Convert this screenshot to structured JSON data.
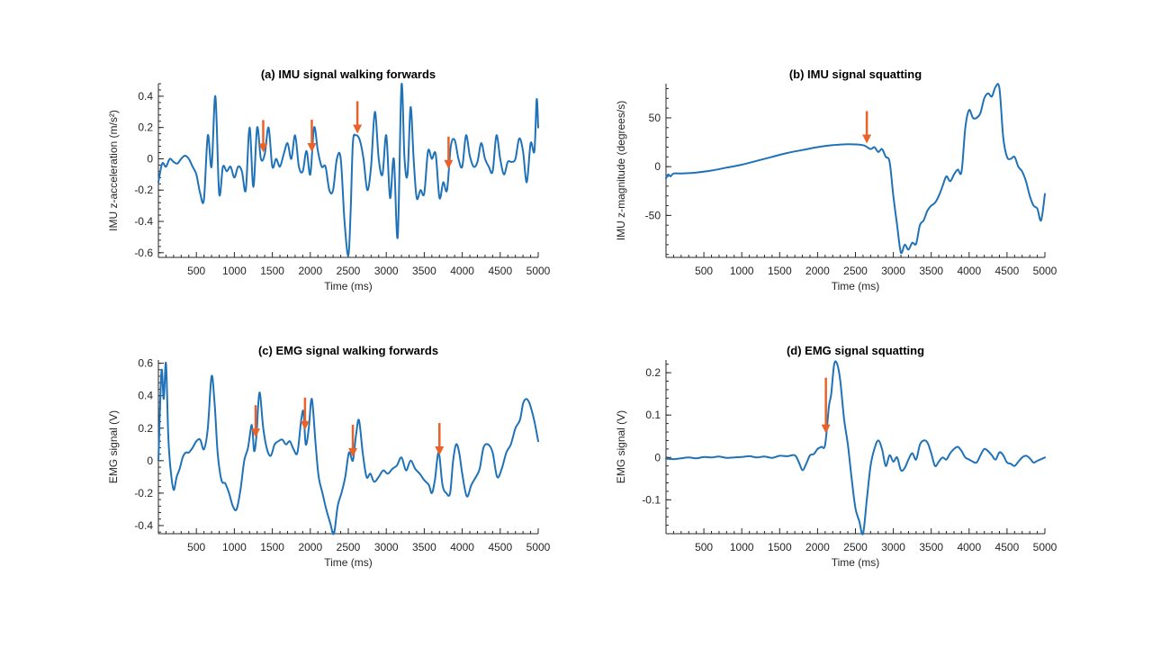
{
  "colors": {
    "series": "#1F72B8",
    "arrow": "#E8622A",
    "axis": "#262626"
  },
  "chart_data": [
    {
      "id": "a",
      "type": "line",
      "title": "(a) IMU signal walking forwards",
      "xlabel": "Time (ms)",
      "ylabel": "IMU z-acceleration (m/s²)",
      "xlim": [
        0,
        5000
      ],
      "ylim": [
        -0.63,
        0.48
      ],
      "xticks": [
        500,
        1000,
        1500,
        2000,
        2500,
        3000,
        3500,
        4000,
        4500,
        5000
      ],
      "yticks": [
        -0.6,
        -0.4,
        -0.2,
        0,
        0.2,
        0.4
      ],
      "ytick_labels": [
        "-0.6",
        "-0.4",
        "-0.2",
        "0",
        "0.2",
        "0.4"
      ],
      "series": [
        {
          "name": "IMU z-acceleration",
          "x": [
            0,
            50,
            100,
            150,
            200,
            250,
            300,
            350,
            400,
            450,
            500,
            550,
            600,
            650,
            700,
            750,
            800,
            850,
            900,
            950,
            1000,
            1050,
            1100,
            1150,
            1200,
            1250,
            1300,
            1350,
            1400,
            1450,
            1500,
            1550,
            1600,
            1650,
            1700,
            1750,
            1800,
            1850,
            1900,
            1950,
            2000,
            2050,
            2100,
            2150,
            2200,
            2250,
            2300,
            2350,
            2400,
            2450,
            2500,
            2530,
            2560,
            2600,
            2650,
            2700,
            2750,
            2800,
            2850,
            2900,
            2950,
            3000,
            3050,
            3100,
            3150,
            3200,
            3240,
            3280,
            3320,
            3360,
            3400,
            3450,
            3500,
            3550,
            3600,
            3650,
            3700,
            3750,
            3800,
            3850,
            3900,
            3950,
            4000,
            4050,
            4100,
            4150,
            4200,
            4250,
            4300,
            4350,
            4400,
            4450,
            4500,
            4550,
            4600,
            4650,
            4700,
            4750,
            4800,
            4850,
            4900,
            4950,
            4980,
            5000
          ],
          "y": [
            -0.15,
            -0.03,
            -0.05,
            0.0,
            -0.02,
            -0.03,
            0.0,
            0.02,
            0.0,
            -0.05,
            -0.1,
            -0.22,
            -0.26,
            0.15,
            -0.05,
            0.4,
            -0.22,
            -0.05,
            -0.08,
            -0.05,
            -0.12,
            -0.05,
            -0.08,
            -0.2,
            0.2,
            -0.18,
            0.2,
            0.0,
            0.03,
            0.2,
            -0.05,
            0.0,
            -0.05,
            0.03,
            0.1,
            0.0,
            0.15,
            -0.05,
            -0.08,
            0.05,
            -0.1,
            0.2,
            0.05,
            -0.05,
            -0.05,
            -0.2,
            -0.2,
            0.0,
            0.0,
            -0.4,
            -0.62,
            -0.35,
            0.1,
            0.15,
            0.12,
            0.0,
            -0.2,
            -0.05,
            0.3,
            0.0,
            -0.1,
            0.15,
            -0.25,
            0.0,
            -0.5,
            0.47,
            0.0,
            -0.1,
            0.33,
            0.0,
            -0.25,
            -0.2,
            -0.22,
            0.05,
            0.0,
            0.03,
            -0.25,
            -0.15,
            -0.2,
            0.08,
            0.12,
            0.0,
            -0.05,
            0.15,
            0.02,
            -0.05,
            -0.02,
            0.1,
            0.0,
            -0.05,
            -0.08,
            0.15,
            0.0,
            -0.1,
            -0.02,
            -0.02,
            0.0,
            0.13,
            0.05,
            -0.15,
            0.1,
            0.05,
            0.38,
            0.2
          ]
        }
      ],
      "arrows": [
        1380,
        2020,
        2620,
        3820
      ]
    },
    {
      "id": "b",
      "type": "line",
      "title": "(b) IMU signal squatting",
      "xlabel": "Time (ms)",
      "ylabel": "IMU z-magnitude (degrees/s)",
      "xlim": [
        0,
        5000
      ],
      "ylim": [
        -93,
        85
      ],
      "xticks": [
        500,
        1000,
        1500,
        2000,
        2500,
        3000,
        3500,
        4000,
        4500,
        5000
      ],
      "yticks": [
        -50,
        0,
        50
      ],
      "ytick_labels": [
        "-50",
        "0",
        "50"
      ],
      "series": [
        {
          "name": "IMU z-magnitude",
          "x": [
            0,
            30,
            60,
            100,
            200,
            400,
            600,
            800,
            1000,
            1200,
            1400,
            1600,
            1800,
            2000,
            2200,
            2400,
            2600,
            2700,
            2750,
            2800,
            2850,
            2900,
            2950,
            3000,
            3050,
            3100,
            3150,
            3200,
            3250,
            3300,
            3350,
            3400,
            3450,
            3500,
            3550,
            3600,
            3650,
            3700,
            3750,
            3800,
            3850,
            3900,
            3950,
            4000,
            4050,
            4100,
            4150,
            4200,
            4250,
            4300,
            4350,
            4400,
            4450,
            4500,
            4550,
            4600,
            4650,
            4700,
            4750,
            4800,
            4850,
            4900,
            4950,
            5000
          ],
          "y": [
            -12,
            -8,
            -10,
            -7,
            -7,
            -6,
            -4,
            -1,
            2,
            6,
            10,
            14,
            17,
            20,
            22,
            23,
            22,
            18,
            20,
            15,
            18,
            10,
            5,
            -30,
            -60,
            -88,
            -80,
            -85,
            -78,
            -79,
            -60,
            -55,
            -45,
            -40,
            -37,
            -30,
            -20,
            -10,
            -15,
            -8,
            -3,
            -5,
            40,
            58,
            50,
            50,
            55,
            70,
            75,
            72,
            82,
            80,
            30,
            10,
            8,
            10,
            0,
            -5,
            -15,
            -30,
            -40,
            -43,
            -55,
            -28
          ]
        }
      ],
      "arrows": [
        2650
      ]
    },
    {
      "id": "c",
      "type": "line",
      "title": "(c) EMG signal walking forwards",
      "xlabel": "Time (ms)",
      "ylabel": "EMG signal (V)",
      "xlim": [
        0,
        5000
      ],
      "ylim": [
        -0.45,
        0.62
      ],
      "xticks": [
        500,
        1000,
        1500,
        2000,
        2500,
        3000,
        3500,
        4000,
        4500,
        5000
      ],
      "yticks": [
        -0.4,
        -0.2,
        0,
        0.2,
        0.4,
        0.6
      ],
      "ytick_labels": [
        "-0.4",
        "-0.2",
        "0",
        "0.2",
        "0.4",
        "0.6"
      ],
      "series": [
        {
          "name": "EMG signal",
          "x": [
            0,
            40,
            70,
            100,
            130,
            160,
            200,
            240,
            280,
            320,
            360,
            400,
            450,
            500,
            550,
            600,
            650,
            700,
            740,
            780,
            830,
            880,
            930,
            980,
            1030,
            1080,
            1130,
            1180,
            1230,
            1260,
            1290,
            1330,
            1380,
            1430,
            1480,
            1530,
            1580,
            1630,
            1680,
            1730,
            1780,
            1830,
            1880,
            1910,
            1940,
            1980,
            2020,
            2070,
            2110,
            2160,
            2210,
            2260,
            2310,
            2360,
            2410,
            2460,
            2510,
            2560,
            2600,
            2640,
            2690,
            2740,
            2790,
            2840,
            2900,
            2960,
            3020,
            3080,
            3140,
            3200,
            3260,
            3320,
            3380,
            3440,
            3500,
            3560,
            3600,
            3640,
            3690,
            3740,
            3790,
            3840,
            3880,
            3920,
            3960,
            4000,
            4060,
            4120,
            4180,
            4230,
            4280,
            4340,
            4400,
            4460,
            4520,
            4580,
            4640,
            4700,
            4760,
            4800,
            4840,
            4880,
            4920,
            4960,
            5000
          ],
          "y": [
            0.0,
            0.55,
            0.38,
            0.6,
            0.15,
            -0.05,
            -0.18,
            -0.1,
            -0.05,
            0.02,
            0.05,
            0.05,
            0.08,
            0.12,
            0.13,
            0.07,
            0.2,
            0.52,
            0.35,
            0.05,
            -0.12,
            -0.14,
            -0.2,
            -0.28,
            -0.3,
            -0.18,
            0.0,
            0.08,
            0.22,
            0.06,
            0.15,
            0.42,
            0.2,
            0.07,
            0.03,
            0.1,
            0.12,
            0.13,
            0.1,
            0.12,
            0.07,
            0.05,
            0.25,
            0.3,
            0.1,
            0.2,
            0.38,
            0.1,
            -0.1,
            -0.2,
            -0.3,
            -0.38,
            -0.45,
            -0.28,
            -0.2,
            -0.1,
            0.05,
            0.0,
            0.15,
            0.25,
            0.05,
            -0.1,
            -0.08,
            -0.13,
            -0.1,
            -0.06,
            -0.08,
            -0.05,
            -0.03,
            0.02,
            -0.06,
            0.0,
            -0.05,
            -0.08,
            -0.12,
            -0.15,
            -0.2,
            -0.12,
            0.05,
            -0.15,
            -0.2,
            -0.2,
            0.0,
            0.1,
            0.05,
            -0.08,
            -0.22,
            -0.15,
            -0.1,
            -0.05,
            0.08,
            0.1,
            0.05,
            -0.1,
            -0.05,
            0.05,
            0.1,
            0.2,
            0.25,
            0.35,
            0.38,
            0.36,
            0.3,
            0.22,
            0.12
          ]
        }
      ],
      "arrows": [
        1280,
        1930,
        2560,
        3700
      ]
    },
    {
      "id": "d",
      "type": "line",
      "title": "(d) EMG signal squatting",
      "xlabel": "Time (ms)",
      "ylabel": "EMG signal (V)",
      "xlim": [
        0,
        5000
      ],
      "ylim": [
        -0.18,
        0.23
      ],
      "xticks": [
        500,
        1000,
        1500,
        2000,
        2500,
        3000,
        3500,
        4000,
        4500,
        5000
      ],
      "yticks": [
        -0.1,
        0,
        0.1,
        0.2
      ],
      "ytick_labels": [
        "-0.1",
        "0",
        "0.1",
        "0.2"
      ],
      "series": [
        {
          "name": "EMG signal",
          "x": [
            0,
            100,
            200,
            300,
            400,
            500,
            600,
            700,
            800,
            900,
            1000,
            1100,
            1200,
            1300,
            1400,
            1500,
            1600,
            1700,
            1750,
            1800,
            1850,
            1900,
            1950,
            2000,
            2050,
            2100,
            2150,
            2180,
            2220,
            2260,
            2300,
            2350,
            2400,
            2450,
            2500,
            2550,
            2600,
            2650,
            2700,
            2750,
            2800,
            2850,
            2900,
            2950,
            3000,
            3050,
            3100,
            3150,
            3200,
            3250,
            3300,
            3350,
            3400,
            3450,
            3500,
            3550,
            3600,
            3650,
            3700,
            3750,
            3800,
            3850,
            3900,
            3950,
            4000,
            4050,
            4100,
            4150,
            4200,
            4250,
            4300,
            4350,
            4400,
            4450,
            4500,
            4550,
            4600,
            4650,
            4700,
            4750,
            4800,
            4850,
            4900,
            4950,
            5000
          ],
          "y": [
            -0.003,
            -0.004,
            -0.002,
            0.0,
            -0.002,
            0.001,
            0.0,
            0.002,
            -0.001,
            0.0,
            0.001,
            0.003,
            0.0,
            0.002,
            -0.001,
            0.004,
            0.003,
            0.005,
            -0.01,
            -0.03,
            -0.015,
            0.005,
            0.008,
            0.02,
            0.025,
            0.03,
            0.12,
            0.15,
            0.22,
            0.22,
            0.18,
            0.09,
            0.03,
            -0.05,
            -0.12,
            -0.15,
            -0.18,
            -0.1,
            -0.02,
            0.02,
            0.04,
            0.02,
            -0.02,
            0.005,
            -0.01,
            0.0,
            -0.03,
            -0.025,
            -0.005,
            0.01,
            -0.005,
            0.03,
            0.04,
            0.035,
            0.01,
            -0.02,
            -0.01,
            0.0,
            -0.005,
            0.01,
            0.02,
            0.025,
            0.015,
            0.0,
            -0.005,
            -0.01,
            -0.012,
            0.005,
            0.02,
            0.015,
            0.005,
            -0.005,
            0.012,
            0.005,
            -0.012,
            -0.015,
            -0.02,
            -0.01,
            0.0,
            0.004,
            -0.002,
            -0.012,
            -0.008,
            -0.004,
            0.0
          ]
        }
      ],
      "arrows": [
        2110
      ]
    }
  ]
}
